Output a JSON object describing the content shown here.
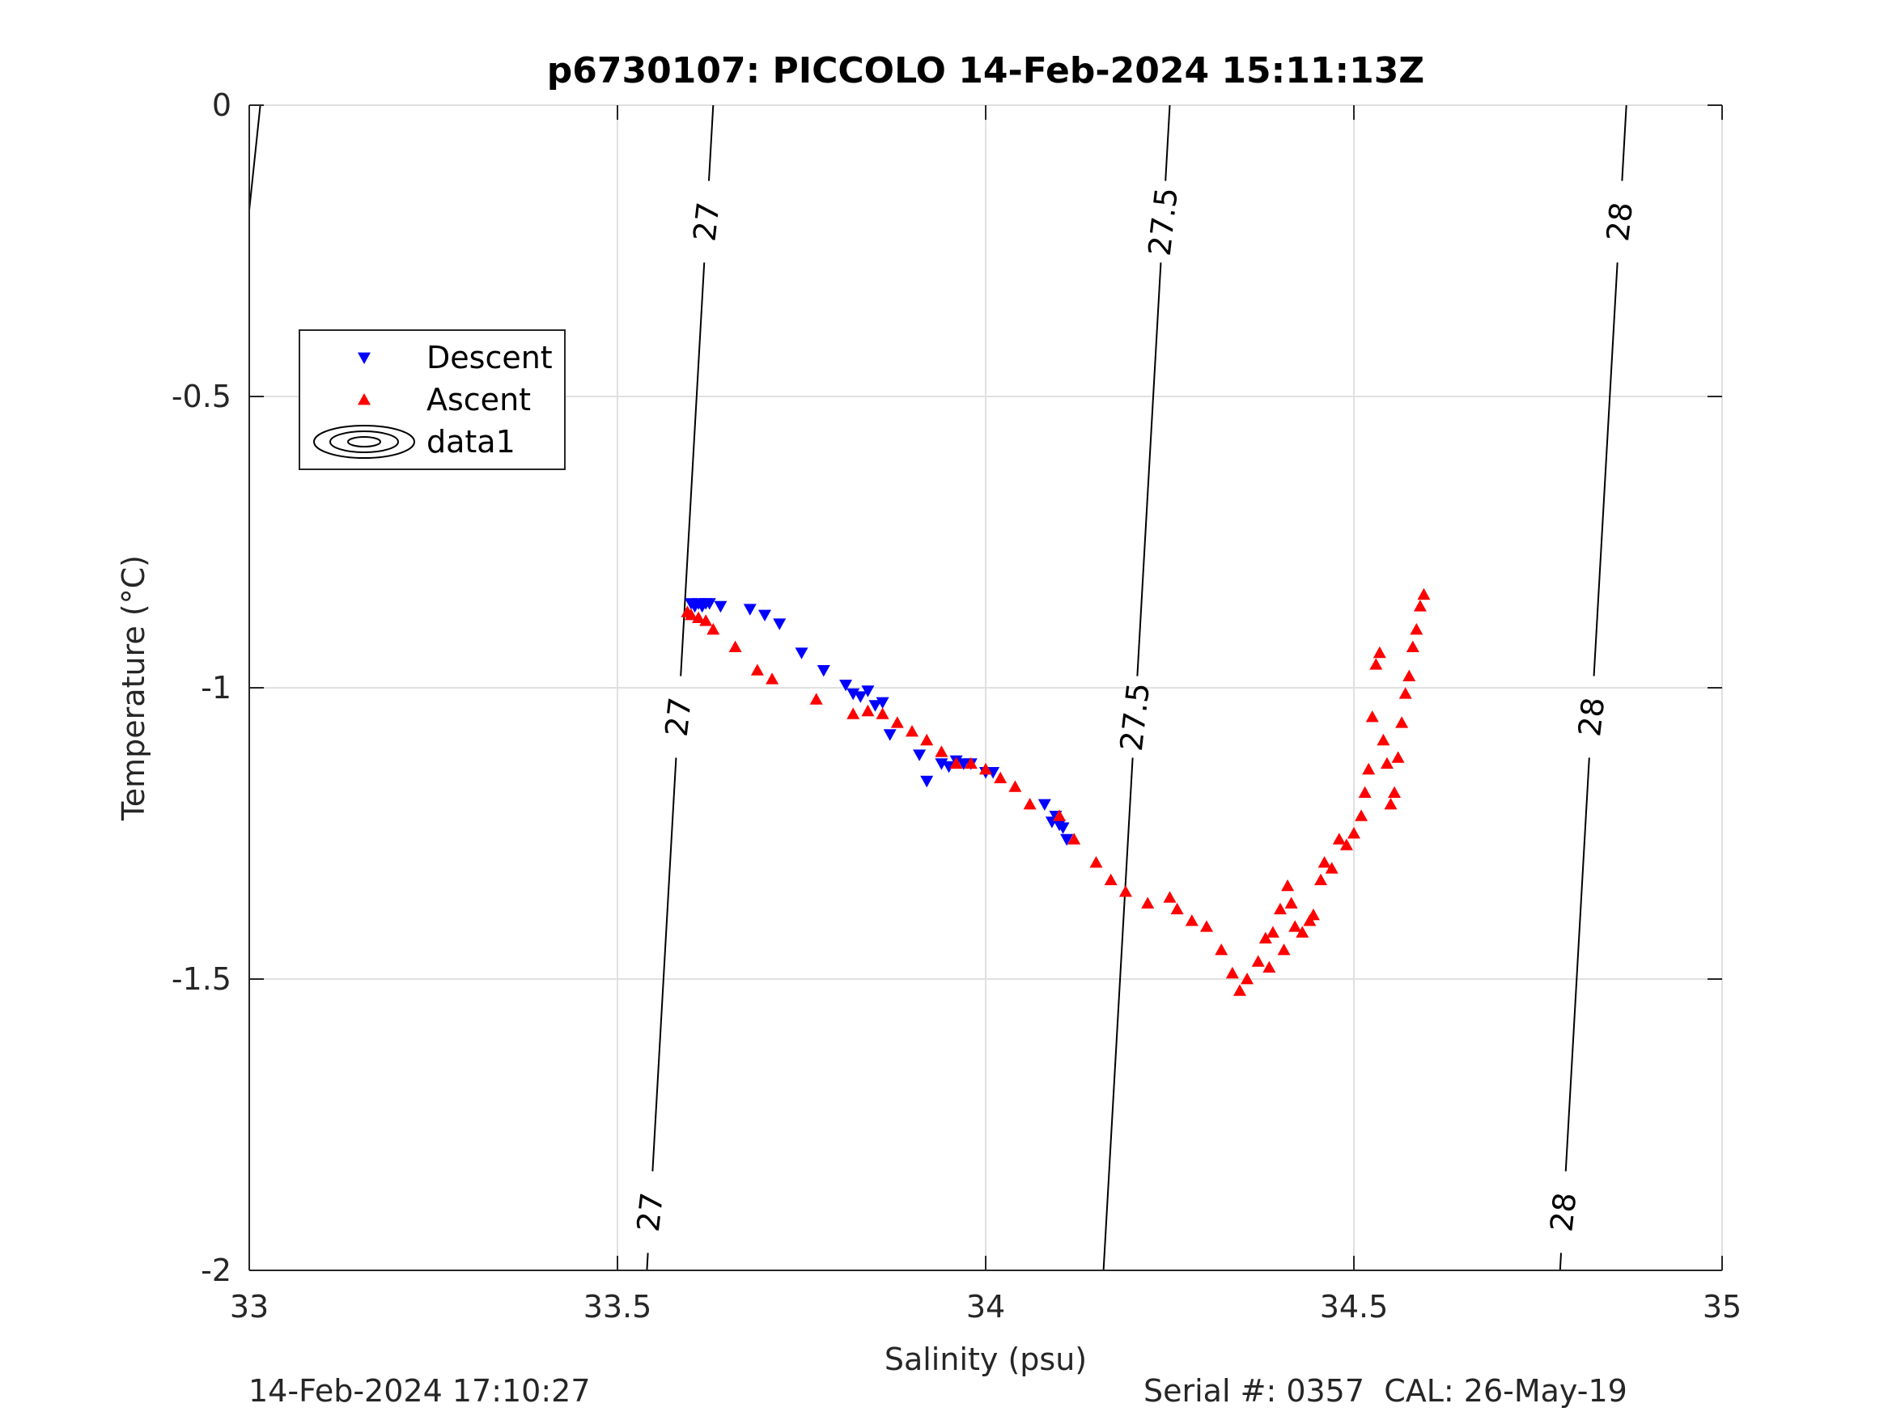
{
  "footer": {
    "left": "14-Feb-2024 17:10:27",
    "right": "Serial #: 0357  CAL: 26-May-19"
  },
  "chart_data": {
    "type": "scatter",
    "title": "p6730107: PICCOLO 14-Feb-2024 15:11:13Z",
    "xlabel": "Salinity (psu)",
    "ylabel": "Temperature (°C)",
    "xlim": [
      33,
      35
    ],
    "ylim": [
      -2,
      0
    ],
    "xticks": [
      33,
      33.5,
      34,
      34.5,
      35
    ],
    "xtick_labels": [
      "33",
      "33.5",
      "34",
      "34.5",
      "35"
    ],
    "yticks": [
      0,
      -0.5,
      -1,
      -1.5,
      -2
    ],
    "ytick_labels": [
      "0",
      "-0.5",
      "-1",
      "-1.5",
      "-2"
    ],
    "grid": true,
    "legend": {
      "placement": "upper-left",
      "entries": [
        {
          "label": "Descent",
          "marker": "triangle-down",
          "color": "#0000ff"
        },
        {
          "label": "Ascent",
          "marker": "triangle-up",
          "color": "#ff0000"
        },
        {
          "label": "data1",
          "marker": "contour",
          "color": "#000000"
        }
      ]
    },
    "series": [
      {
        "name": "Descent",
        "marker": "triangle-down",
        "color": "#0000ff",
        "x": [
          33.6,
          33.605,
          33.61,
          33.615,
          33.62,
          33.625,
          33.64,
          33.68,
          33.7,
          33.72,
          33.75,
          33.78,
          33.81,
          33.82,
          33.83,
          33.84,
          33.85,
          33.86,
          33.87,
          33.91,
          33.92,
          33.94,
          33.95,
          33.96,
          33.97,
          33.98,
          34.0,
          34.01,
          34.08,
          34.09,
          34.095,
          34.1,
          34.105,
          34.11
        ],
        "y": [
          -0.855,
          -0.86,
          -0.855,
          -0.86,
          -0.855,
          -0.855,
          -0.86,
          -0.865,
          -0.875,
          -0.89,
          -0.94,
          -0.97,
          -0.995,
          -1.01,
          -1.015,
          -1.005,
          -1.03,
          -1.025,
          -1.08,
          -1.115,
          -1.16,
          -1.13,
          -1.135,
          -1.125,
          -1.13,
          -1.13,
          -1.145,
          -1.145,
          -1.2,
          -1.23,
          -1.22,
          -1.235,
          -1.24,
          -1.26
        ]
      },
      {
        "name": "Ascent",
        "marker": "triangle-up",
        "color": "#ff0000",
        "x": [
          33.595,
          33.6,
          33.61,
          33.62,
          33.63,
          33.66,
          33.69,
          33.71,
          33.77,
          33.82,
          33.84,
          33.86,
          33.88,
          33.9,
          33.92,
          33.94,
          33.96,
          33.98,
          34.0,
          34.02,
          34.04,
          34.06,
          34.1,
          34.12,
          34.15,
          34.17,
          34.19,
          34.22,
          34.25,
          34.26,
          34.28,
          34.3,
          34.32,
          34.335,
          34.345,
          34.355,
          34.37,
          34.38,
          34.385,
          34.39,
          34.4,
          34.405,
          34.41,
          34.415,
          34.42,
          34.43,
          34.44,
          34.445,
          34.455,
          34.46,
          34.47,
          34.48,
          34.49,
          34.5,
          34.51,
          34.515,
          34.52,
          34.525,
          34.53,
          34.535,
          34.54,
          34.545,
          34.55,
          34.555,
          34.56,
          34.565,
          34.57,
          34.575,
          34.58,
          34.585,
          34.59,
          34.595
        ],
        "y": [
          -0.87,
          -0.875,
          -0.88,
          -0.885,
          -0.9,
          -0.93,
          -0.97,
          -0.985,
          -1.02,
          -1.045,
          -1.04,
          -1.045,
          -1.06,
          -1.075,
          -1.09,
          -1.11,
          -1.13,
          -1.13,
          -1.14,
          -1.155,
          -1.17,
          -1.2,
          -1.22,
          -1.26,
          -1.3,
          -1.33,
          -1.35,
          -1.37,
          -1.36,
          -1.38,
          -1.4,
          -1.41,
          -1.45,
          -1.49,
          -1.52,
          -1.5,
          -1.47,
          -1.43,
          -1.48,
          -1.42,
          -1.38,
          -1.45,
          -1.34,
          -1.37,
          -1.41,
          -1.42,
          -1.4,
          -1.39,
          -1.33,
          -1.3,
          -1.31,
          -1.26,
          -1.27,
          -1.25,
          -1.22,
          -1.18,
          -1.14,
          -1.05,
          -0.96,
          -0.94,
          -1.09,
          -1.13,
          -1.2,
          -1.18,
          -1.12,
          -1.06,
          -1.01,
          -0.98,
          -0.93,
          -0.9,
          -0.86,
          -0.84
        ]
      }
    ],
    "contours": [
      {
        "level": "27",
        "x_top": 33.63,
        "x_bottom": 33.54,
        "labels_y": [
          -0.2,
          -1.05,
          -1.9
        ]
      },
      {
        "level": "27.5",
        "x_top": 34.25,
        "x_bottom": 34.16,
        "labels_y": [
          -0.2,
          -1.05
        ]
      },
      {
        "level": "28",
        "x_top": 34.87,
        "x_bottom": 34.78,
        "labels_y": [
          -0.2,
          -1.05,
          -1.9
        ]
      }
    ],
    "partial_contour": {
      "x_top": 33.015,
      "x_bottom": 33.0,
      "y_bottom": -0.18
    }
  }
}
